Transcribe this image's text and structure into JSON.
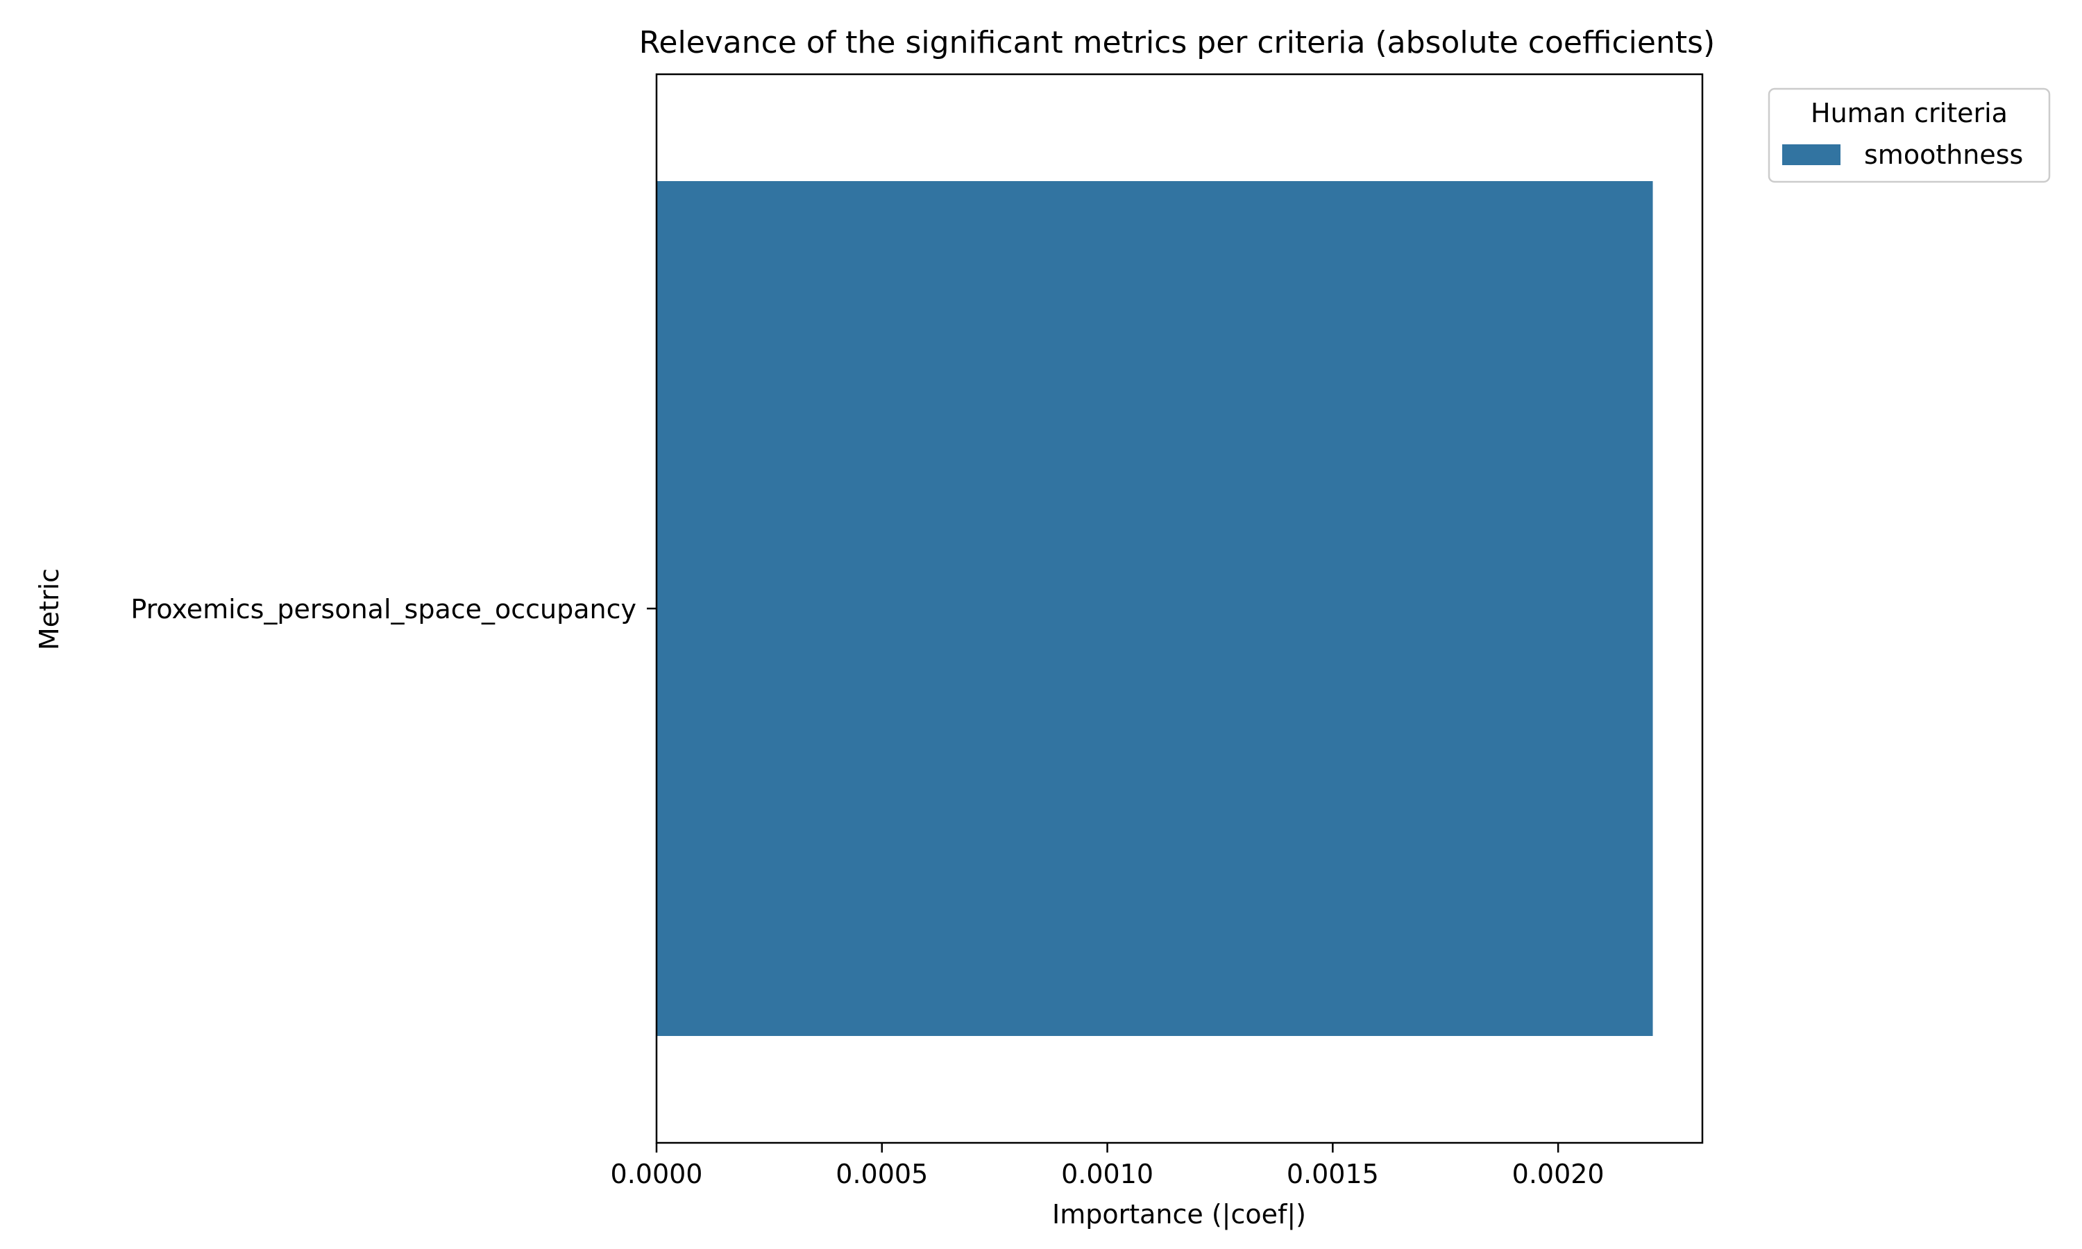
{
  "chart_data": {
    "type": "bar",
    "orientation": "horizontal",
    "title": "Relevance of the significant metrics per criteria (absolute coefficients)",
    "xlabel": "Importance (|coef|)",
    "ylabel": "Metric",
    "categories": [
      "Proxemics_personal_space_occupancy"
    ],
    "series": [
      {
        "name": "smoothness",
        "values": [
          0.00221
        ],
        "color": "#3274a1"
      }
    ],
    "xlim": [
      0,
      0.00232
    ],
    "xticks": [
      {
        "value": 0.0,
        "label": "0.0000"
      },
      {
        "value": 0.0005,
        "label": "0.0005"
      },
      {
        "value": 0.001,
        "label": "0.0010"
      },
      {
        "value": 0.0015,
        "label": "0.0015"
      },
      {
        "value": 0.002,
        "label": "0.0020"
      }
    ],
    "grid": false,
    "legend": {
      "title": "Human criteria",
      "placement": "outside-upper-right",
      "entries": [
        "smoothness"
      ]
    }
  }
}
